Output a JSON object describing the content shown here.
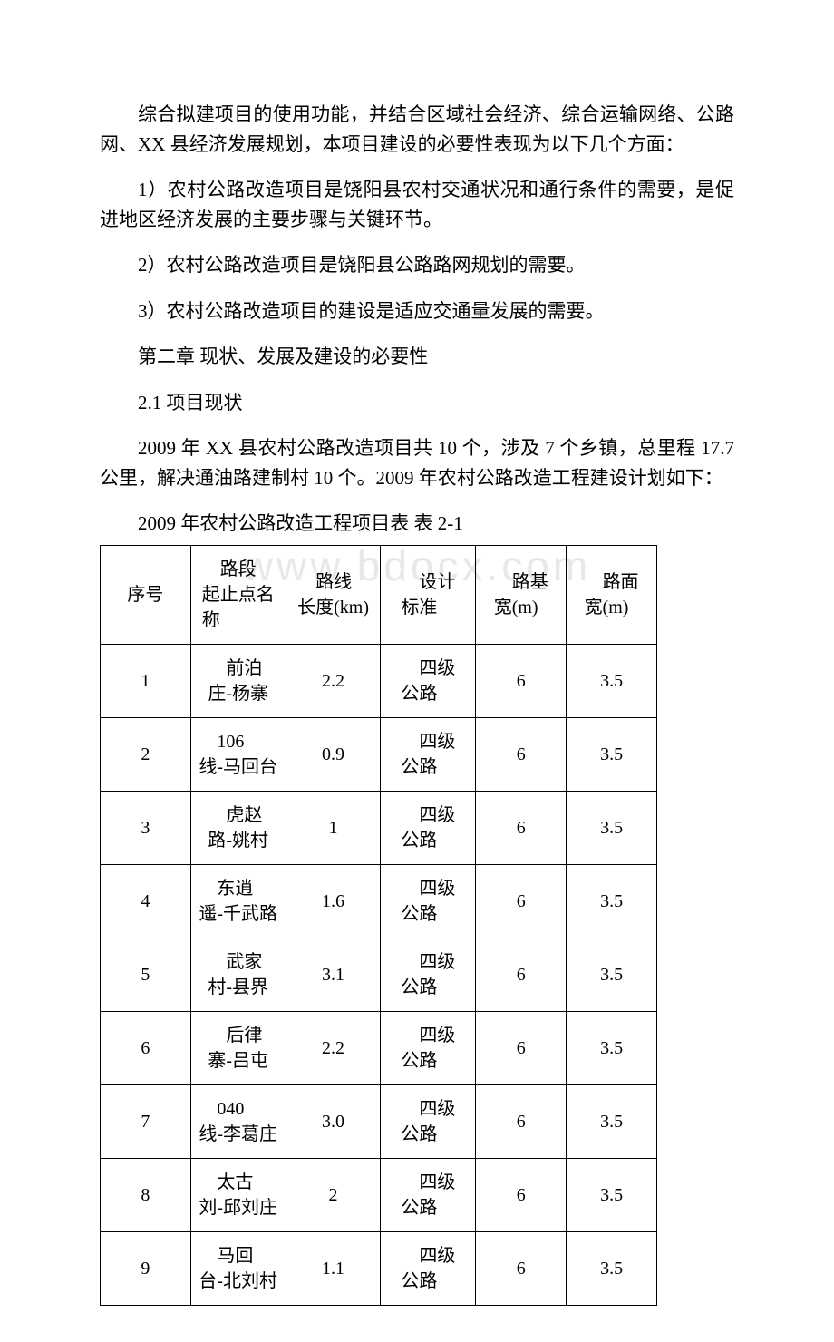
{
  "watermark": "www.bdocx.com",
  "paragraphs": {
    "p1": "综合拟建项目的使用功能，并结合区域社会经济、综合运输网络、公路网、XX 县经济发展规划，本项目建设的必要性表现为以下几个方面：",
    "p2": "1）农村公路改造项目是饶阳县农村交通状况和通行条件的需要，是促进地区经济发展的主要步骤与关键环节。",
    "p3": "2）农村公路改造项目是饶阳县公路路网规划的需要。",
    "p4": "3）农村公路改造项目的建设是适应交通量发展的需要。",
    "p5": "第二章 现状、发展及建设的必要性",
    "p6": "2.1 项目现状",
    "p7": "2009 年 XX 县农村公路改造项目共 10 个，涉及 7 个乡镇，总里程 17.7 公里，解决通油路建制村 10 个。2009 年农村公路改造工程建设计划如下：",
    "table_caption": "2009 年农村公路改造工程项目表 表 2-1"
  },
  "table": {
    "columns": {
      "c1": "序号",
      "c2_line1": "路段",
      "c2_line2": "起止点名",
      "c2_line3": "称",
      "c3_line1": "路线",
      "c3_line2": "长度(km)",
      "c4_line1": "设计",
      "c4_line2": "标准",
      "c5_line1": "路基",
      "c5_line2": "宽(m)",
      "c6_line1": "路面",
      "c6_line2": "宽(m)"
    },
    "rows": [
      {
        "no": "1",
        "name_l1": "前泊",
        "name_l2": "庄-杨寨",
        "len": "2.2",
        "std_l1": "四级",
        "std_l2": "公路",
        "base": "6",
        "surf": "3.5"
      },
      {
        "no": "2",
        "name_l1": "106",
        "name_l2": "线-马回台",
        "len": "0.9",
        "std_l1": "四级",
        "std_l2": "公路",
        "base": "6",
        "surf": "3.5"
      },
      {
        "no": "3",
        "name_l1": "虎赵",
        "name_l2": "路-姚村",
        "len": "1",
        "std_l1": "四级",
        "std_l2": "公路",
        "base": "6",
        "surf": "3.5"
      },
      {
        "no": "4",
        "name_l1": "东逍",
        "name_l2": "遥-千武路",
        "len": "1.6",
        "std_l1": "四级",
        "std_l2": "公路",
        "base": "6",
        "surf": "3.5"
      },
      {
        "no": "5",
        "name_l1": "武家",
        "name_l2": "村-县界",
        "len": "3.1",
        "std_l1": "四级",
        "std_l2": "公路",
        "base": "6",
        "surf": "3.5"
      },
      {
        "no": "6",
        "name_l1": "后律",
        "name_l2": "寨-吕屯",
        "len": "2.2",
        "std_l1": "四级",
        "std_l2": "公路",
        "base": "6",
        "surf": "3.5"
      },
      {
        "no": "7",
        "name_l1": "040",
        "name_l2": "线-李葛庄",
        "len": "3.0",
        "std_l1": "四级",
        "std_l2": "公路",
        "base": "6",
        "surf": "3.5"
      },
      {
        "no": "8",
        "name_l1": "太古",
        "name_l2": "刘-邱刘庄",
        "len": "2",
        "std_l1": "四级",
        "std_l2": "公路",
        "base": "6",
        "surf": "3.5"
      },
      {
        "no": "9",
        "name_l1": "马回",
        "name_l2": "台-北刘村",
        "len": "1.1",
        "std_l1": "四级",
        "std_l2": "公路",
        "base": "6",
        "surf": "3.5"
      }
    ]
  },
  "style": {
    "background_color": "#ffffff",
    "text_color": "#000000",
    "border_color": "#000000",
    "watermark_color": "#e8e8e8",
    "body_fontsize": 21,
    "table_fontsize": 20
  }
}
